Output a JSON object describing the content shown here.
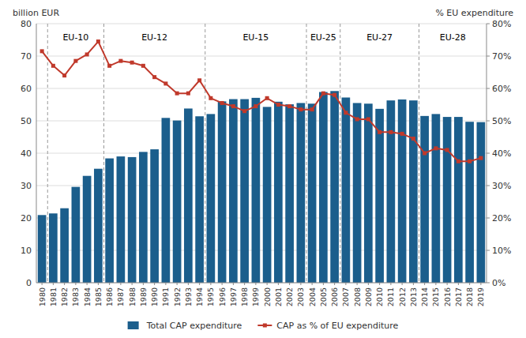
{
  "chart_data": {
    "type": "bar",
    "x": [
      1980,
      1981,
      1982,
      1983,
      1984,
      1985,
      1986,
      1987,
      1988,
      1989,
      1990,
      1991,
      1992,
      1993,
      1994,
      1995,
      1996,
      1997,
      1998,
      1999,
      2000,
      2001,
      2002,
      2003,
      2004,
      2005,
      2006,
      2007,
      2008,
      2009,
      2010,
      2011,
      2012,
      2013,
      2014,
      2015,
      2016,
      2017,
      2018,
      2019
    ],
    "xlim": [
      1979.5,
      2019.5
    ],
    "xticks": [
      1980,
      1981,
      1982,
      1983,
      1984,
      1985,
      1986,
      1987,
      1988,
      1989,
      1990,
      1991,
      1992,
      1993,
      1994,
      1995,
      1996,
      1997,
      1998,
      1999,
      2000,
      2001,
      2002,
      2003,
      2004,
      2005,
      2006,
      2007,
      2008,
      2009,
      2010,
      2011,
      2012,
      2013,
      2014,
      2015,
      2016,
      2017,
      2018,
      2019
    ],
    "series": [
      {
        "name": "Total CAP expenditure",
        "type": "bar",
        "color": "#1B5E8C",
        "values": [
          20.9,
          21.4,
          23.0,
          29.6,
          33.0,
          35.2,
          38.4,
          39.0,
          38.8,
          40.4,
          41.2,
          50.9,
          50.1,
          53.8,
          51.4,
          52.1,
          56.0,
          56.7,
          56.7,
          57.1,
          54.3,
          55.9,
          55.1,
          55.5,
          55.3,
          58.9,
          59.2,
          57.2,
          55.5,
          55.3,
          53.7,
          56.3,
          56.6,
          56.3,
          51.5,
          52.1,
          51.2,
          51.2,
          49.7,
          49.6
        ]
      },
      {
        "name": "CAP as % of EU expenditure",
        "type": "line",
        "color": "#C0392B",
        "marker": "square",
        "axis": "y2",
        "values": [
          71.5,
          67.0,
          64.0,
          68.5,
          70.5,
          74.5,
          67.0,
          68.5,
          68.0,
          67.0,
          63.5,
          61.5,
          58.5,
          58.5,
          62.5,
          57.0,
          55.5,
          54.5,
          53.0,
          54.5,
          57.0,
          55.0,
          54.5,
          53.5,
          53.5,
          58.5,
          58.0,
          52.5,
          50.5,
          50.5,
          46.5,
          46.5,
          46.0,
          44.5,
          40.0,
          41.5,
          41.0,
          37.5,
          37.5,
          38.5
        ]
      }
    ],
    "ylim": [
      0,
      80
    ],
    "yticks": [
      0,
      10,
      20,
      30,
      40,
      50,
      60,
      70,
      80
    ],
    "y2lim": [
      0,
      80
    ],
    "y2ticks": [
      {
        "value": 0,
        "label": "0%"
      },
      {
        "value": 10,
        "label": "10%"
      },
      {
        "value": 20,
        "label": "20%"
      },
      {
        "value": 30,
        "label": "30%"
      },
      {
        "value": 40,
        "label": "40%"
      },
      {
        "value": 50,
        "label": "50%"
      },
      {
        "value": 60,
        "label": "60%"
      },
      {
        "value": 70,
        "label": "70%"
      },
      {
        "value": 80,
        "label": "80%"
      }
    ],
    "y_label": "billion EUR",
    "y2_label": "% EU expenditure",
    "vlines": [
      1980.5,
      1985.5,
      1994.5,
      2003.5,
      2006.5,
      2013.5
    ],
    "annotations": [
      {
        "text": "EU-10",
        "x_start": 1981,
        "x_end": 1985,
        "y": 77.5
      },
      {
        "text": "EU-12",
        "x_start": 1986,
        "x_end": 1994,
        "y": 77.5
      },
      {
        "text": "EU-15",
        "x_start": 1995,
        "x_end": 2003,
        "y": 77.5
      },
      {
        "text": "EU-25",
        "x_start": 2004,
        "x_end": 2006,
        "y": 77.5
      },
      {
        "text": "EU-27",
        "x_start": 2007,
        "x_end": 2013,
        "y": 77.5
      },
      {
        "text": "EU-28",
        "x_start": 2014,
        "x_end": 2019,
        "y": 77.5
      }
    ],
    "grid": true,
    "legend": "bottom"
  }
}
